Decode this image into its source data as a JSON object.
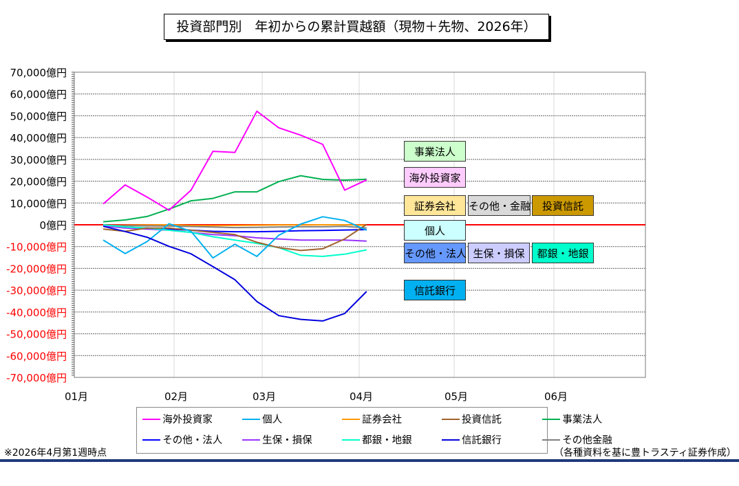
{
  "title": "投資部門別　年初からの累計買越額（現物＋先物、2026年）",
  "chart_data": {
    "type": "line",
    "title": "投資部門別　年初からの累計買越額（現物＋先物、2026年）",
    "xlabel": "",
    "ylabel": "",
    "ylim": [
      -70000,
      70000
    ],
    "y_ticks": [
      70000,
      60000,
      50000,
      40000,
      30000,
      20000,
      10000,
      0,
      -10000,
      -20000,
      -30000,
      -40000,
      -50000,
      -60000,
      -70000
    ],
    "y_tick_labels": [
      "70,000億円",
      "60,000億円",
      "50,000億円",
      "40,000億円",
      "30,000億円",
      "20,000億円",
      "10,000億円",
      "0億円",
      "-10,000億円",
      "-20,000億円",
      "-30,000億円",
      "-40,000億円",
      "-50,000億円",
      "-60,000億円",
      "-70,000億円"
    ],
    "x_tick_labels": [
      "01月",
      "02月",
      "03月",
      "04月",
      "05月",
      "06月"
    ],
    "grid": true,
    "legend_position": "bottom",
    "series": [
      {
        "name": "海外投資家",
        "color": "#ff00ff",
        "values": [
          9600,
          18300,
          12700,
          6700,
          15900,
          33700,
          33200,
          52100,
          44500,
          41100,
          36900,
          15900,
          20600
        ]
      },
      {
        "name": "個人",
        "color": "#00b0f0",
        "values": [
          -7000,
          -13200,
          -7700,
          500,
          -3000,
          -15200,
          -8900,
          -14500,
          -4800,
          300,
          3700,
          2000,
          -2500
        ]
      },
      {
        "name": "証券会社",
        "color": "#ff9900",
        "values": [
          -300,
          -200,
          -100,
          0,
          -300,
          -400,
          -300,
          -200,
          -100,
          -100,
          0,
          0,
          -200
        ]
      },
      {
        "name": "投資信託",
        "color": "#a0622d",
        "values": [
          -2000,
          -3000,
          -1500,
          -1500,
          -2500,
          -3500,
          -4500,
          -8000,
          -10500,
          -11800,
          -11000,
          -6500,
          200
        ]
      },
      {
        "name": "事業法人",
        "color": "#00b050",
        "values": [
          1400,
          2200,
          3800,
          7200,
          11000,
          12100,
          15100,
          15100,
          19800,
          22500,
          20800,
          20500,
          20900
        ]
      },
      {
        "name": "その他・法人",
        "color": "#0000ff",
        "values": [
          -500,
          -1000,
          -1500,
          -2000,
          -2500,
          -3000,
          -3200,
          -3200,
          -3000,
          -2700,
          -2600,
          -2400,
          -2200
        ]
      },
      {
        "name": "生保・損保",
        "color": "#9933ff",
        "values": [
          -500,
          -1500,
          -2000,
          -2500,
          -3500,
          -4500,
          -5000,
          -6000,
          -6500,
          -7000,
          -7000,
          -7000,
          -7500
        ]
      },
      {
        "name": "都銀・地銀",
        "color": "#00ffcc",
        "values": [
          0,
          -1000,
          -1500,
          -2500,
          -3500,
          -5500,
          -7000,
          -8500,
          -10500,
          -14000,
          -14500,
          -13500,
          -11500
        ]
      },
      {
        "name": "信託銀行",
        "color": "#0000dd",
        "values": [
          -700,
          -3100,
          -5700,
          -9900,
          -13300,
          -19200,
          -25200,
          -35200,
          -41700,
          -43400,
          -44100,
          -40700,
          -30600
        ]
      },
      {
        "name": "その他金融",
        "color": "#808080",
        "values": [
          -200,
          -400,
          -500,
          -600,
          -800,
          -1000,
          -1300,
          -1200,
          -1000,
          -900,
          -900,
          -700,
          -1500
        ]
      }
    ],
    "annotation_tags": [
      {
        "label": "事業法人",
        "bg": "#ccffcc"
      },
      {
        "label": "海外投資家",
        "bg": "#ffccff"
      },
      {
        "label": "証券会社",
        "bg": "#ffe699"
      },
      {
        "label": "その他・金融",
        "bg": "#d9d9d9"
      },
      {
        "label": "投資信託",
        "bg": "#cc9900"
      },
      {
        "label": "個人",
        "bg": "#ccffff"
      },
      {
        "label": "その他・法人",
        "bg": "#6699ff"
      },
      {
        "label": "生保・損保",
        "bg": "#ccccff"
      },
      {
        "label": "都銀・地銀",
        "bg": "#00ffcc"
      },
      {
        "label": "信託銀行",
        "bg": "#00b0f0"
      }
    ]
  },
  "footer": {
    "left": "※2026年4月第1週時点",
    "right": "（各種資料を基に豊トラスティ証券作成）"
  }
}
